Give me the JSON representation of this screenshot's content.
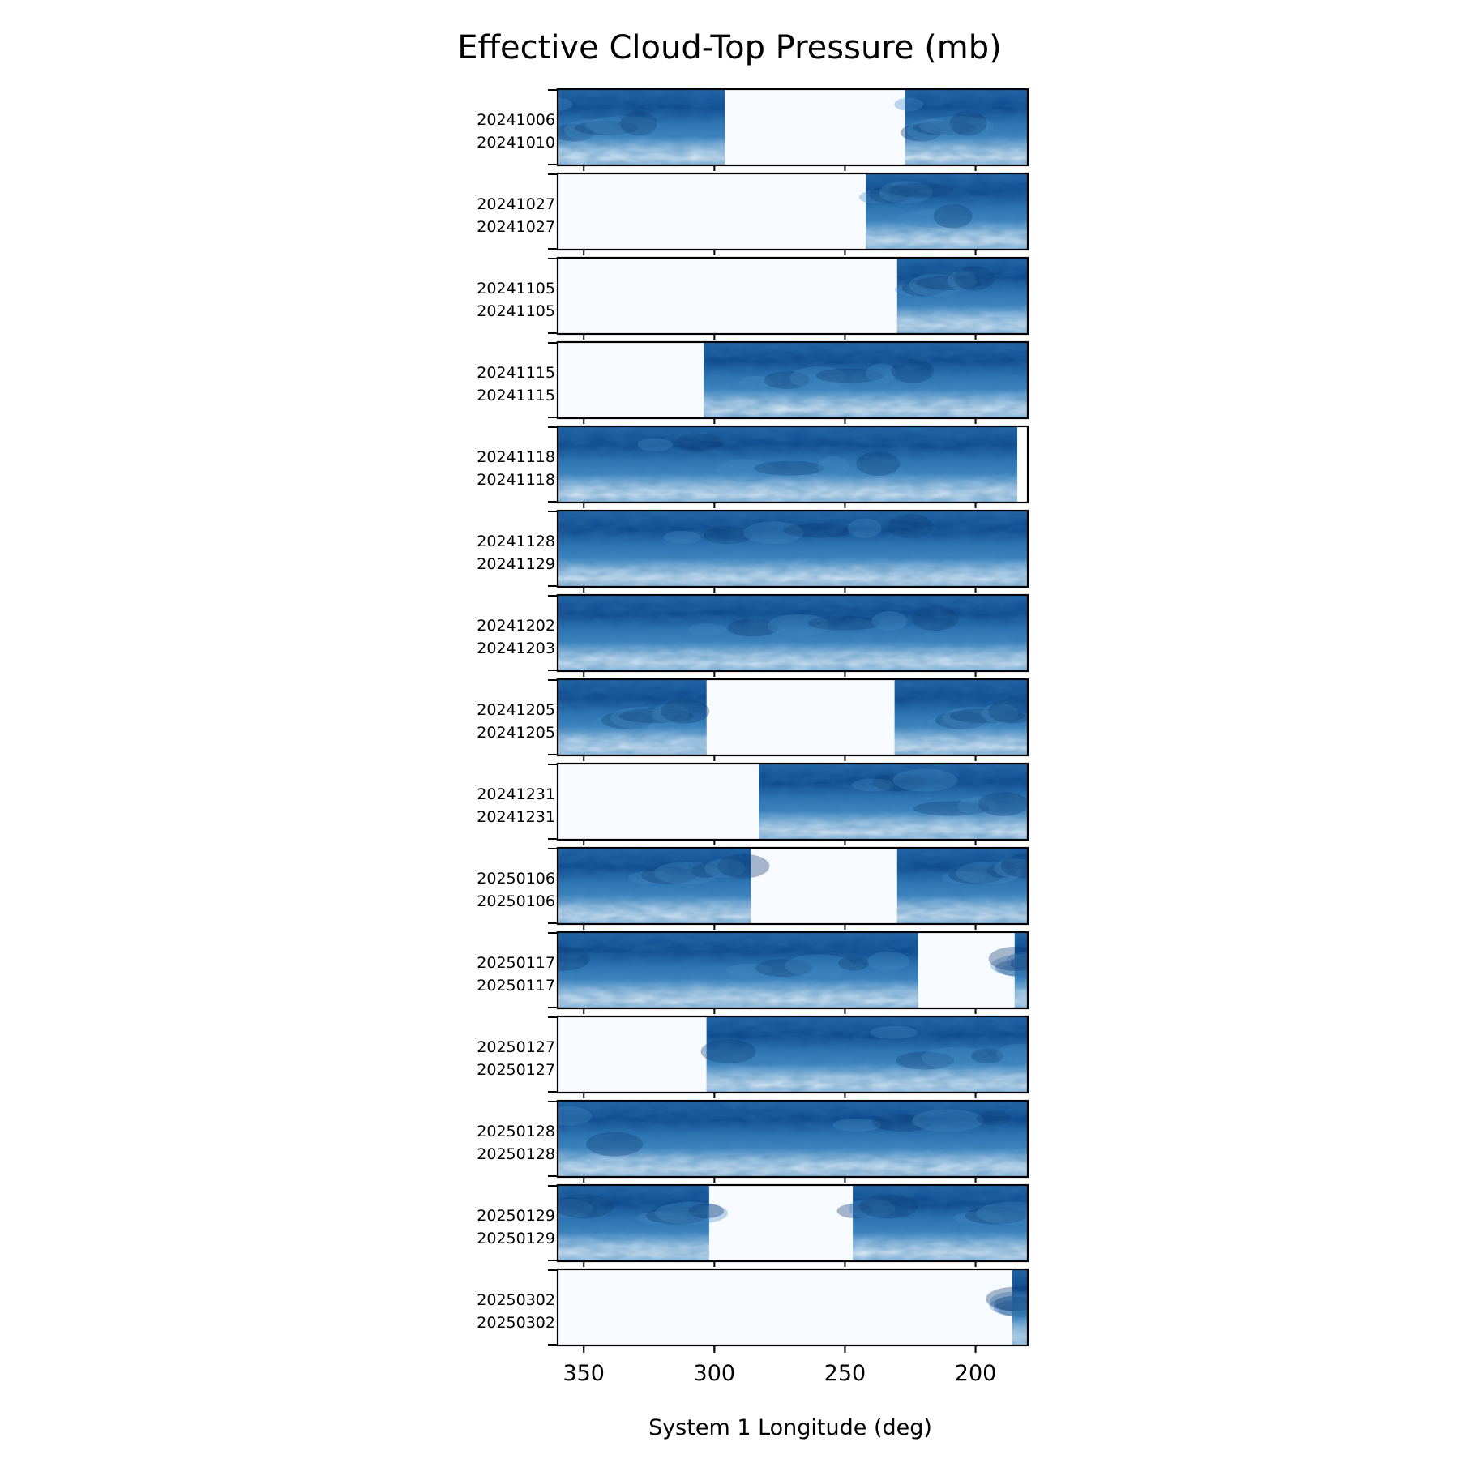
{
  "chart_data": {
    "type": "heatmap",
    "title": "Effective Cloud-Top Pressure (mb)",
    "xlabel": "System 1 Longitude (deg)",
    "xlim": [
      360,
      180
    ],
    "xticks": [
      350,
      300,
      250,
      200
    ],
    "colormap": "Blues",
    "colors": {
      "low": "#f7fbff",
      "mid": "#6baed6",
      "high": "#08306b"
    },
    "panels": [
      {
        "labels": [
          "20241006",
          "20241010"
        ],
        "coverage": [
          [
            360,
            296
          ],
          [
            227,
            180
          ]
        ],
        "gap_color": "blank"
      },
      {
        "labels": [
          "20241027",
          "20241027"
        ],
        "coverage": [
          [
            242,
            180
          ]
        ]
      },
      {
        "labels": [
          "20241105",
          "20241105"
        ],
        "coverage": [
          [
            230,
            180
          ]
        ]
      },
      {
        "labels": [
          "20241115",
          "20241115"
        ],
        "coverage": [
          [
            304,
            180
          ]
        ]
      },
      {
        "labels": [
          "20241118",
          "20241118"
        ],
        "coverage": [
          [
            360,
            184
          ]
        ],
        "edge_white": true
      },
      {
        "labels": [
          "20241128",
          "20241129"
        ],
        "coverage": [
          [
            360,
            180
          ]
        ]
      },
      {
        "labels": [
          "20241202",
          "20241203"
        ],
        "coverage": [
          [
            360,
            180
          ]
        ]
      },
      {
        "labels": [
          "20241205",
          "20241205"
        ],
        "coverage": [
          [
            360,
            303
          ],
          [
            231,
            180
          ]
        ]
      },
      {
        "labels": [
          "20241231",
          "20241231"
        ],
        "coverage": [
          [
            283,
            180
          ]
        ]
      },
      {
        "labels": [
          "20250106",
          "20250106"
        ],
        "coverage": [
          [
            360,
            286
          ],
          [
            230,
            180
          ]
        ]
      },
      {
        "labels": [
          "20250117",
          "20250117"
        ],
        "coverage": [
          [
            360,
            222
          ],
          [
            185,
            180
          ]
        ]
      },
      {
        "labels": [
          "20250127",
          "20250127"
        ],
        "coverage": [
          [
            303,
            180
          ]
        ]
      },
      {
        "labels": [
          "20250128",
          "20250128"
        ],
        "coverage": [
          [
            360,
            180
          ]
        ]
      },
      {
        "labels": [
          "20250129",
          "20250129"
        ],
        "coverage": [
          [
            360,
            302
          ],
          [
            247,
            180
          ]
        ]
      },
      {
        "labels": [
          "20250302",
          "20250302"
        ],
        "coverage": [
          [
            186,
            180
          ]
        ]
      }
    ]
  }
}
